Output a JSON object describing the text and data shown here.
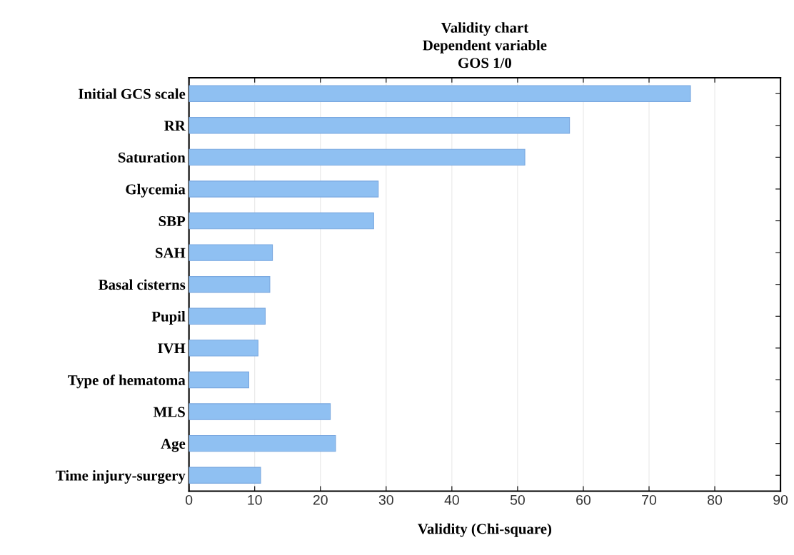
{
  "chart_data": {
    "type": "bar",
    "orientation": "horizontal",
    "title": "Validity chart\nDependent variable\nGOS 1/0",
    "xlabel": "Validity (Chi-square)",
    "categories": [
      "Initial GCS scale",
      "RR",
      "Saturation",
      "Glycemia",
      "SBP",
      "SAH",
      "Basal cisterns",
      "Pupil",
      "IVH",
      "Type of hematoma",
      "MLS",
      "Age",
      "Time injury-surgery"
    ],
    "values": [
      76.3,
      57.9,
      51.1,
      28.8,
      28.1,
      12.7,
      12.3,
      11.6,
      10.5,
      9.1,
      21.5,
      22.3,
      10.9
    ],
    "color": "#8fc0f2",
    "xlim": [
      0,
      90
    ],
    "xticks": [
      0,
      10,
      20,
      30,
      40,
      50,
      60,
      70,
      80,
      90
    ],
    "grid": "x"
  }
}
